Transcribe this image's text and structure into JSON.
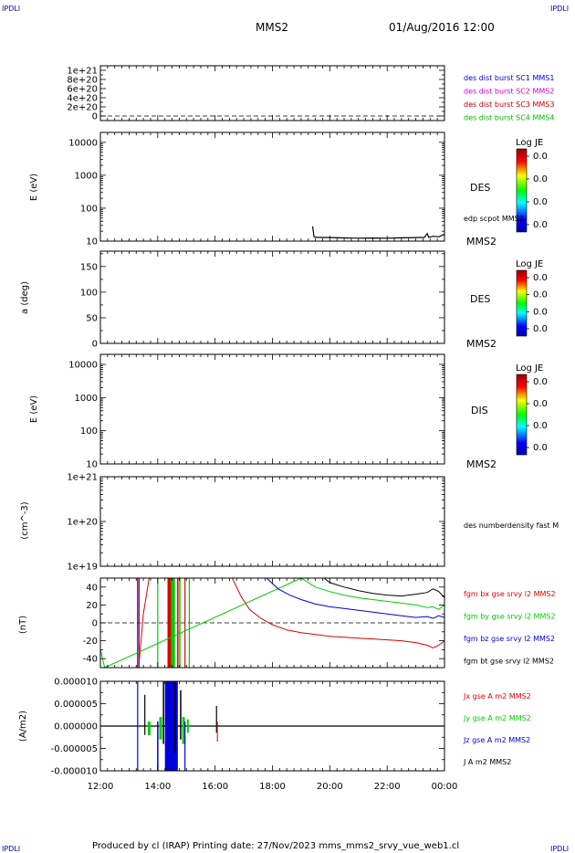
{
  "header": {
    "corner_label": "IPDLI",
    "satellite": "MMS2",
    "datetime": "01/Aug/2016 12:00"
  },
  "footer": {
    "credit": "Produced by cl (IRAP)   Printing date: 27/Nov/2023   mms_mms2_srvy_vue_web1.cl",
    "corner_label": "IPDLI"
  },
  "colors": {
    "mms1": "#0000cc",
    "mms2": "#cc00cc",
    "mms3": "#cc0000",
    "mms4": "#00bb00",
    "red": "#dd0000",
    "green": "#00cc00",
    "blue": "#0000dd",
    "black": "#000000"
  },
  "time_axis": {
    "ticks": [
      "12:00",
      "14:00",
      "16:00",
      "18:00",
      "20:00",
      "22:00",
      "00:00"
    ]
  },
  "chart_data": [
    {
      "type": "line",
      "panel": "burst",
      "yticks": [
        "1e+21",
        "8e+20",
        "6e+20",
        "4e+20",
        "2e+20",
        "0"
      ],
      "legend": [
        {
          "name": "des dist burst SC1 MMS1",
          "color": "#0000cc"
        },
        {
          "name": "des dist burst SC2 MMS2",
          "color": "#cc00cc"
        },
        {
          "name": "des dist burst SC3 MMS3",
          "color": "#cc0000"
        },
        {
          "name": "des dist burst SC4 MMS4",
          "color": "#00bb00"
        }
      ]
    },
    {
      "type": "heatmap",
      "panel": "des-energy",
      "ylabel": "E (eV)",
      "scale": "log",
      "ylim": [
        10,
        20000
      ],
      "yticks": [
        "10000",
        "1000",
        "100",
        "10"
      ],
      "right_label": "DES",
      "bottom_label": "MMS2",
      "overlay_label": "edp scpot MMS2",
      "colorbar": {
        "title": "Log JE",
        "ticks": [
          "0.0",
          "0.0",
          "0.0",
          "0.0"
        ]
      },
      "series": [
        {
          "name": "edp scpot MMS2",
          "x": [
            19.4,
            19.45,
            19.5,
            20.0,
            20.5,
            21.0,
            21.5,
            22.0,
            22.5,
            23.0,
            23.3,
            23.4,
            23.45,
            23.6,
            23.8,
            24.0
          ],
          "y": [
            28,
            13.5,
            13,
            12.8,
            12.5,
            12.3,
            12.4,
            12.3,
            12.6,
            12.8,
            13,
            17,
            13,
            14,
            13.5,
            16
          ]
        }
      ]
    },
    {
      "type": "heatmap",
      "panel": "des-pitch",
      "ylabel": "a (deg)",
      "ylim": [
        0,
        180
      ],
      "yticks": [
        "150",
        "100",
        "50",
        "0"
      ],
      "right_label": "DES",
      "bottom_label": "MMS2",
      "colorbar": {
        "title": "Log JE",
        "ticks": [
          "0.0",
          "0.0",
          "0.0",
          "0.0"
        ]
      }
    },
    {
      "type": "heatmap",
      "panel": "dis-energy",
      "ylabel": "E (eV)",
      "scale": "log",
      "ylim": [
        10,
        20000
      ],
      "yticks": [
        "10000",
        "1000",
        "100",
        "10"
      ],
      "right_label": "DIS",
      "bottom_label": "MMS2",
      "colorbar": {
        "title": "Log JE",
        "ticks": [
          "0.0",
          "0.0",
          "0.0",
          "0.0"
        ]
      }
    },
    {
      "type": "line",
      "panel": "density",
      "ylabel": "(cm^-3)",
      "scale": "log",
      "yticks": [
        "1e+21",
        "1e+20",
        "1e+19"
      ],
      "legend": [
        {
          "name": "des numberdensity fast M",
          "color": "#000000"
        }
      ]
    },
    {
      "type": "line",
      "panel": "fgm",
      "ylabel": "(nT)",
      "ylim": [
        -50,
        50
      ],
      "yticks": [
        "40",
        "20",
        "0",
        "-20",
        "-40"
      ],
      "legend": [
        {
          "name": "fgm bx gse srvy l2 MMS2",
          "color": "#dd0000"
        },
        {
          "name": "fgm by gse srvy l2 MMS2",
          "color": "#00cc00"
        },
        {
          "name": "fgm bz gse srvy l2 MMS2",
          "color": "#0000dd"
        },
        {
          "name": "fgm bt gse srvy l2 MMS2",
          "color": "#000000"
        }
      ],
      "series": [
        {
          "name": "fgm bx gse srvy l2 MMS2",
          "x": [
            13.35,
            13.5,
            13.7,
            16.6,
            16.9,
            17.2,
            17.6,
            18.0,
            18.5,
            19.0,
            19.5,
            20.0,
            20.5,
            21.0,
            21.5,
            22.0,
            22.5,
            23.0,
            23.4,
            23.6,
            23.8,
            24.0
          ],
          "y": [
            -45,
            10,
            50,
            50,
            30,
            15,
            5,
            -2,
            -8,
            -11,
            -13,
            -15,
            -16,
            -17,
            -18,
            -19,
            -20,
            -22,
            -25,
            -28,
            -25,
            -20
          ]
        },
        {
          "name": "fgm by gse srvy l2 MMS2",
          "x": [
            12.0,
            12.15,
            19.0,
            19.5,
            20.0,
            20.5,
            21.0,
            21.5,
            22.0,
            22.5,
            23.0,
            23.4,
            23.6,
            23.8,
            24.0
          ],
          "y": [
            -30,
            -50,
            50,
            40,
            35,
            31,
            28,
            26,
            24,
            22,
            20,
            17,
            18,
            15,
            20
          ]
        },
        {
          "name": "fgm bz gse srvy l2 MMS2",
          "x": [
            17.8,
            18.2,
            18.6,
            19.0,
            19.5,
            20.0,
            20.5,
            21.0,
            21.5,
            22.0,
            22.5,
            23.0,
            23.4,
            23.6,
            23.8,
            24.0
          ],
          "y": [
            50,
            38,
            31,
            26,
            21,
            18,
            16,
            14,
            12,
            10,
            8,
            6,
            7,
            5,
            8,
            6
          ]
        },
        {
          "name": "fgm bt gse srvy l2 MMS2",
          "x": [
            19.8,
            20.0,
            20.5,
            21.0,
            21.5,
            22.0,
            22.5,
            23.0,
            23.4,
            23.6,
            23.8,
            24.0
          ],
          "y": [
            50,
            45,
            40,
            36,
            33,
            31,
            30,
            32,
            34,
            38,
            35,
            28
          ]
        }
      ]
    },
    {
      "type": "line",
      "panel": "current",
      "ylabel": "(A/m2)",
      "ylim": [
        -1e-05,
        1e-05
      ],
      "yticks": [
        "0.000010",
        "0.000005",
        "0.000000",
        "-0.000005",
        "-0.000010"
      ],
      "legend": [
        {
          "name": "Jx gse A m2 MMS2",
          "color": "#dd0000"
        },
        {
          "name": "Jy gse A m2 MMS2",
          "color": "#00cc00"
        },
        {
          "name": "Jz gse A m2 MMS2",
          "color": "#0000dd"
        },
        {
          "name": "J A m2 MMS2",
          "color": "#000000"
        }
      ]
    }
  ]
}
